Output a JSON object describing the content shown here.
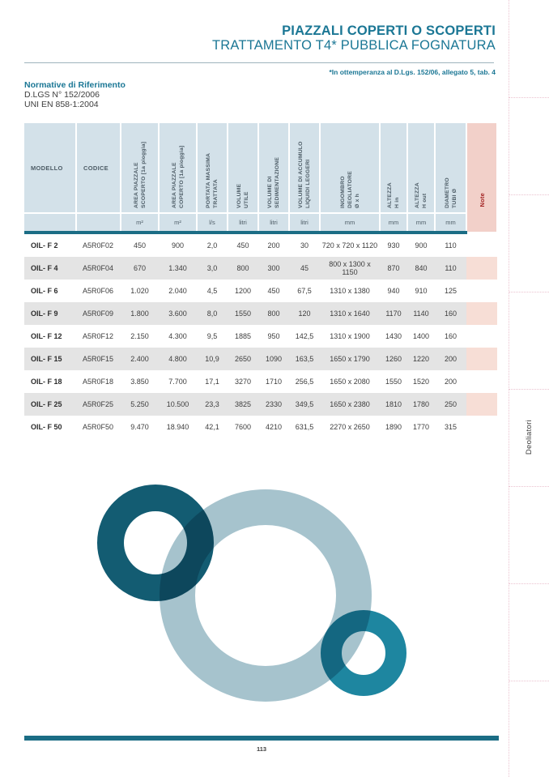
{
  "header": {
    "title_line1": "PIAZZALI COPERTI O SCOPERTI",
    "title_line2": "TRATTAMENTO T4* PUBBLICA FOGNATURA",
    "compliance_note": "*In ottemperanza al D.Lgs. 152/06, allegato 5, tab. 4"
  },
  "normative": {
    "heading": "Normative di Riferimento",
    "items": [
      "D.LGS N° 152/2006",
      "UNI EN 858-1:2004"
    ]
  },
  "table": {
    "columns": [
      {
        "label": "MODELLO",
        "unit": "",
        "type": "h"
      },
      {
        "label": "CODICE",
        "unit": "",
        "type": "h"
      },
      {
        "label": "AREA PIAZZALE\nSCOPERTO [1a pioggia]",
        "unit": "m²",
        "type": "v"
      },
      {
        "label": "AREA PIAZZALE\nCOPERTO [1a pioggia]",
        "unit": "m²",
        "type": "v"
      },
      {
        "label": "PORTATA MASSIMA\nTRATTATA",
        "unit": "l/s",
        "type": "v"
      },
      {
        "label": "VOLUME\nUTILE",
        "unit": "litri",
        "type": "v"
      },
      {
        "label": "VOLUME DI\nSEDIMENTAZIONE",
        "unit": "litri",
        "type": "v"
      },
      {
        "label": "VOLUME DI ACCUMULO\nLIQUIDI LEGGERI",
        "unit": "litri",
        "type": "v"
      },
      {
        "label": "INGOMBRO\nDEOLIATORE\nØ x h",
        "unit": "mm",
        "type": "v"
      },
      {
        "label": "ALTEZZA\nH in",
        "unit": "mm",
        "type": "v"
      },
      {
        "label": "ALTEZZA\nH out",
        "unit": "mm",
        "type": "v"
      },
      {
        "label": "DIAMETRO\nTUBI Ø",
        "unit": "mm",
        "type": "v"
      },
      {
        "label": "Note",
        "unit": "",
        "type": "note"
      }
    ],
    "rows": [
      [
        "OIL- F 2",
        "A5R0F02",
        "450",
        "900",
        "2,0",
        "450",
        "200",
        "30",
        "720 x 720 x 1120",
        "930",
        "900",
        "110",
        ""
      ],
      [
        "OIL- F 4",
        "A5R0F04",
        "670",
        "1.340",
        "3,0",
        "800",
        "300",
        "45",
        "800 x 1300 x 1150",
        "870",
        "840",
        "110",
        ""
      ],
      [
        "OIL- F 6",
        "A5R0F06",
        "1.020",
        "2.040",
        "4,5",
        "1200",
        "450",
        "67,5",
        "1310 x 1380",
        "940",
        "910",
        "125",
        ""
      ],
      [
        "OIL- F 9",
        "A5R0F09",
        "1.800",
        "3.600",
        "8,0",
        "1550",
        "800",
        "120",
        "1310 x 1640",
        "1170",
        "1140",
        "160",
        ""
      ],
      [
        "OIL- F 12",
        "A5R0F12",
        "2.150",
        "4.300",
        "9,5",
        "1885",
        "950",
        "142,5",
        "1310 x 1900",
        "1430",
        "1400",
        "160",
        ""
      ],
      [
        "OIL- F 15",
        "A5R0F15",
        "2.400",
        "4.800",
        "10,9",
        "2650",
        "1090",
        "163,5",
        "1650 x 1790",
        "1260",
        "1220",
        "200",
        ""
      ],
      [
        "OIL- F 18",
        "A5R0F18",
        "3.850",
        "7.700",
        "17,1",
        "3270",
        "1710",
        "256,5",
        "1650 x 2080",
        "1550",
        "1520",
        "200",
        ""
      ],
      [
        "OIL- F 25",
        "A5R0F25",
        "5.250",
        "10.500",
        "23,3",
        "3825",
        "2330",
        "349,5",
        "1650 x 2380",
        "1810",
        "1780",
        "250",
        ""
      ],
      [
        "OIL- F 50",
        "A5R0F50",
        "9.470",
        "18.940",
        "42,1",
        "7600",
        "4210",
        "631,5",
        "2270 x 2650",
        "1890",
        "1770",
        "315",
        ""
      ]
    ]
  },
  "sidebar": {
    "tab_label": "Deoliatori"
  },
  "footer": {
    "page_number": "113"
  },
  "colors": {
    "accent_teal": "#1b7795",
    "table_header_bg": "#d3e1e9",
    "table_border_teal": "#1b6d85",
    "note_header_bg": "#f2d0c9",
    "note_header_text": "#a32424",
    "note_row_bg": "#f7ded6",
    "alt_row_bg": "#e4e4e4",
    "border_dark_red": "#9c1c1c",
    "ring_dark": "#135c72",
    "ring_light": "#a6c3cd",
    "ring_teal": "#1e86a0"
  }
}
